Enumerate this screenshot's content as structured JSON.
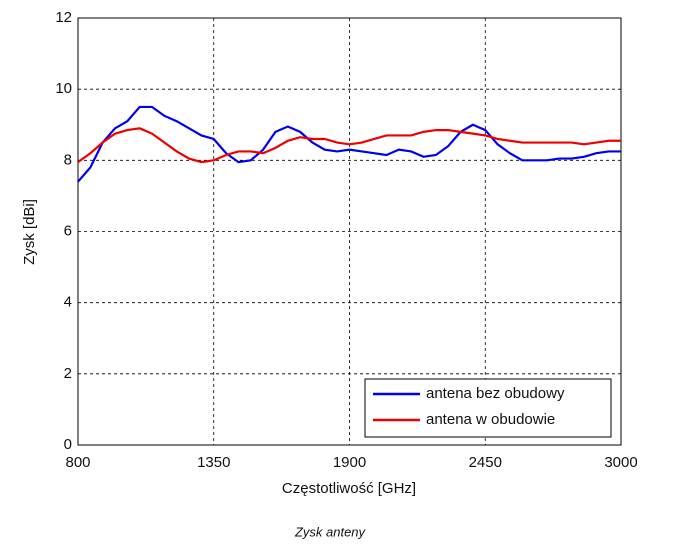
{
  "chart_data": {
    "type": "line",
    "xlabel": "Częstotliwość [GHz]",
    "ylabel": "Zysk [dBi]",
    "caption": "Zysk anteny",
    "x": [
      800,
      850,
      900,
      950,
      1000,
      1050,
      1100,
      1150,
      1200,
      1250,
      1300,
      1350,
      1400,
      1450,
      1500,
      1550,
      1600,
      1650,
      1700,
      1750,
      1800,
      1850,
      1900,
      1950,
      2000,
      2050,
      2100,
      2150,
      2200,
      2250,
      2300,
      2350,
      2400,
      2450,
      2500,
      2550,
      2600,
      2650,
      2700,
      2750,
      2800,
      2850,
      2900,
      2950,
      3000
    ],
    "series": [
      {
        "name": "antena bez obudowy",
        "color": "#0000ee",
        "values": [
          7.4,
          7.8,
          8.5,
          8.9,
          9.1,
          9.5,
          9.5,
          9.25,
          9.1,
          8.9,
          8.7,
          8.6,
          8.2,
          7.95,
          8.0,
          8.3,
          8.8,
          8.95,
          8.8,
          8.5,
          8.3,
          8.25,
          8.3,
          8.25,
          8.2,
          8.15,
          8.3,
          8.25,
          8.1,
          8.15,
          8.4,
          8.8,
          9.0,
          8.85,
          8.45,
          8.2,
          8.0,
          8.0,
          8.0,
          8.05,
          8.05,
          8.1,
          8.2,
          8.25,
          8.25
        ]
      },
      {
        "name": "antena w obudowie",
        "color": "#ee0000",
        "values": [
          7.95,
          8.2,
          8.5,
          8.75,
          8.85,
          8.9,
          8.75,
          8.5,
          8.25,
          8.05,
          7.95,
          8.0,
          8.15,
          8.25,
          8.25,
          8.2,
          8.35,
          8.55,
          8.65,
          8.6,
          8.6,
          8.5,
          8.45,
          8.5,
          8.6,
          8.7,
          8.7,
          8.7,
          8.8,
          8.85,
          8.85,
          8.8,
          8.75,
          8.7,
          8.6,
          8.55,
          8.5,
          8.5,
          8.5,
          8.5,
          8.5,
          8.45,
          8.5,
          8.55,
          8.55
        ]
      }
    ],
    "xlim": [
      800,
      3000
    ],
    "xticks": [
      800,
      1350,
      1900,
      2450,
      3000
    ],
    "ylim": [
      0,
      12
    ],
    "yticks": [
      0,
      2,
      4,
      6,
      8,
      10,
      12
    ],
    "grid": true,
    "legend": "lower right"
  }
}
